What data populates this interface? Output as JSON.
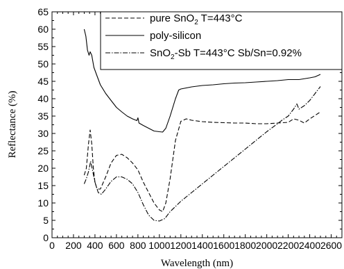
{
  "chart_data": {
    "type": "line",
    "xlabel": "Wavelength (nm)",
    "ylabel": "Reflectance (%)",
    "xlim": [
      0,
      2700
    ],
    "ylim": [
      0,
      65
    ],
    "xticks": [
      0,
      200,
      400,
      600,
      800,
      1000,
      1200,
      1400,
      1600,
      1800,
      2000,
      2200,
      2400,
      2600
    ],
    "yticks": [
      0,
      5,
      10,
      15,
      20,
      25,
      30,
      35,
      40,
      45,
      50,
      55,
      60,
      65
    ],
    "grid": false,
    "legend_position": "top-right",
    "series": [
      {
        "name": "pure SnO2 T=443°C",
        "legend_parts": [
          "pure SnO",
          "2",
          " T=443°C"
        ],
        "style": "dashed",
        "points": [
          [
            300,
            18
          ],
          [
            320,
            20
          ],
          [
            340,
            27
          ],
          [
            355,
            31
          ],
          [
            370,
            27
          ],
          [
            385,
            20
          ],
          [
            400,
            16
          ],
          [
            420,
            14
          ],
          [
            450,
            14
          ],
          [
            500,
            17.5
          ],
          [
            550,
            21.5
          ],
          [
            600,
            23.7
          ],
          [
            650,
            24
          ],
          [
            700,
            23
          ],
          [
            750,
            21.5
          ],
          [
            800,
            19.5
          ],
          [
            850,
            16
          ],
          [
            900,
            13
          ],
          [
            950,
            10
          ],
          [
            1000,
            8
          ],
          [
            1030,
            7.5
          ],
          [
            1060,
            10
          ],
          [
            1100,
            17
          ],
          [
            1150,
            28
          ],
          [
            1200,
            33.5
          ],
          [
            1250,
            34.2
          ],
          [
            1300,
            33.8
          ],
          [
            1400,
            33.4
          ],
          [
            1500,
            33.2
          ],
          [
            1600,
            33.1
          ],
          [
            1700,
            33
          ],
          [
            1800,
            33
          ],
          [
            1900,
            32.8
          ],
          [
            2000,
            32.8
          ],
          [
            2100,
            33
          ],
          [
            2200,
            33.2
          ],
          [
            2250,
            34.2
          ],
          [
            2300,
            33.8
          ],
          [
            2350,
            33
          ],
          [
            2400,
            34.2
          ],
          [
            2450,
            35.2
          ],
          [
            2500,
            36.2
          ]
        ]
      },
      {
        "name": "poly-silicon",
        "legend_parts": [
          "poly-silicon"
        ],
        "style": "solid",
        "points": [
          [
            300,
            60
          ],
          [
            315,
            58
          ],
          [
            330,
            54
          ],
          [
            345,
            52.5
          ],
          [
            355,
            53.5
          ],
          [
            370,
            52.5
          ],
          [
            390,
            49
          ],
          [
            420,
            46.5
          ],
          [
            450,
            44
          ],
          [
            500,
            41.5
          ],
          [
            550,
            39.5
          ],
          [
            600,
            37.5
          ],
          [
            650,
            36.2
          ],
          [
            700,
            35
          ],
          [
            750,
            34.2
          ],
          [
            790,
            33.7
          ],
          [
            800,
            34.5
          ],
          [
            810,
            33
          ],
          [
            850,
            32.3
          ],
          [
            900,
            31.5
          ],
          [
            950,
            30.7
          ],
          [
            1000,
            30.5
          ],
          [
            1030,
            30.4
          ],
          [
            1060,
            31.5
          ],
          [
            1100,
            35
          ],
          [
            1150,
            40
          ],
          [
            1180,
            42.5
          ],
          [
            1200,
            42.8
          ],
          [
            1300,
            43.4
          ],
          [
            1400,
            43.8
          ],
          [
            1500,
            44
          ],
          [
            1600,
            44.3
          ],
          [
            1700,
            44.5
          ],
          [
            1800,
            44.6
          ],
          [
            1900,
            44.8
          ],
          [
            2000,
            45
          ],
          [
            2100,
            45.2
          ],
          [
            2200,
            45.5
          ],
          [
            2300,
            45.5
          ],
          [
            2400,
            46
          ],
          [
            2450,
            46.3
          ],
          [
            2500,
            47
          ]
        ]
      },
      {
        "name": "SnO2-Sb T=443°C Sb/Sn=0.92%",
        "legend_parts": [
          "SnO",
          "2",
          "-Sb T=443°C Sb/Sn=0.92%"
        ],
        "style": "dashdot",
        "points": [
          [
            300,
            15.5
          ],
          [
            320,
            17
          ],
          [
            340,
            19
          ],
          [
            360,
            22
          ],
          [
            380,
            19
          ],
          [
            400,
            16
          ],
          [
            430,
            13
          ],
          [
            460,
            12.5
          ],
          [
            500,
            14
          ],
          [
            550,
            16.2
          ],
          [
            600,
            17.5
          ],
          [
            650,
            17.5
          ],
          [
            700,
            16.8
          ],
          [
            750,
            15.5
          ],
          [
            800,
            13
          ],
          [
            850,
            9.5
          ],
          [
            900,
            6.5
          ],
          [
            950,
            5
          ],
          [
            1000,
            4.8
          ],
          [
            1050,
            5.5
          ],
          [
            1100,
            7.5
          ],
          [
            1200,
            10.5
          ],
          [
            1300,
            13
          ],
          [
            1400,
            15.5
          ],
          [
            1500,
            18
          ],
          [
            1600,
            20.5
          ],
          [
            1700,
            23
          ],
          [
            1800,
            25.5
          ],
          [
            1900,
            28
          ],
          [
            2000,
            30.5
          ],
          [
            2100,
            32.8
          ],
          [
            2150,
            34
          ],
          [
            2200,
            35
          ],
          [
            2250,
            37
          ],
          [
            2280,
            38.5
          ],
          [
            2300,
            37
          ],
          [
            2350,
            38
          ],
          [
            2400,
            39.5
          ],
          [
            2450,
            41.5
          ],
          [
            2500,
            43.5
          ]
        ]
      }
    ]
  }
}
